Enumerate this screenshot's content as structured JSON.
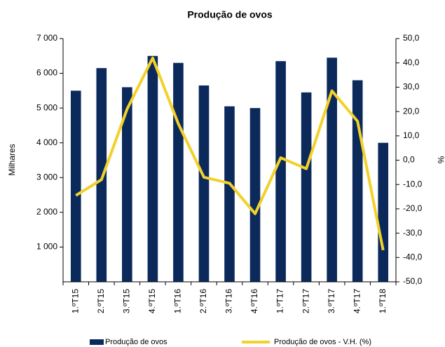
{
  "chart_data": {
    "type": "bar_line",
    "title": "Produção de ovos",
    "ylabel": "Milhares",
    "y2label": "%",
    "categories": [
      "1.ºT15",
      "2.ºT15",
      "3.ºT15",
      "4.ºT15",
      "1.ºT16",
      "2.ºT16",
      "3.ºT16",
      "4.ºT16",
      "1.ºT17",
      "2.ºT17",
      "3.ºT17",
      "4.ºT17",
      "1.ºT18"
    ],
    "series": [
      {
        "name": "Produção de ovos",
        "type": "bar",
        "color": "#0b2a5b",
        "values": [
          5500,
          6150,
          5600,
          6500,
          6300,
          5650,
          5050,
          5000,
          6350,
          5450,
          6450,
          5800,
          4000
        ]
      },
      {
        "name": "Produção de ovos - V.H. (%)",
        "type": "line",
        "axis": "y2",
        "color": "#f2d12a",
        "values": [
          -14.5,
          -8,
          21,
          42,
          15,
          -7,
          -9.5,
          -22,
          1,
          -3.5,
          28.5,
          16,
          -37
        ]
      }
    ],
    "ylim": [
      0,
      7000
    ],
    "yticks": [
      {
        "value": 1000,
        "label": "1 000"
      },
      {
        "value": 2000,
        "label": "2 000"
      },
      {
        "value": 3000,
        "label": "3 000"
      },
      {
        "value": 4000,
        "label": "4 000"
      },
      {
        "value": 5000,
        "label": "5 000"
      },
      {
        "value": 6000,
        "label": "6 000"
      },
      {
        "value": 7000,
        "label": "7 000"
      }
    ],
    "y2lim": [
      -50,
      50
    ],
    "y2ticks": [
      {
        "value": -50,
        "label": "-50,0"
      },
      {
        "value": -40,
        "label": "-40,0"
      },
      {
        "value": -30,
        "label": "-30,0"
      },
      {
        "value": -20,
        "label": "-20,0"
      },
      {
        "value": -10,
        "label": "-10,0"
      },
      {
        "value": 0,
        "label": "0,0"
      },
      {
        "value": 10,
        "label": "10,0"
      },
      {
        "value": 20,
        "label": "20,0"
      },
      {
        "value": 30,
        "label": "30,0"
      },
      {
        "value": 40,
        "label": "40,0"
      },
      {
        "value": 50,
        "label": "50,0"
      }
    ]
  }
}
